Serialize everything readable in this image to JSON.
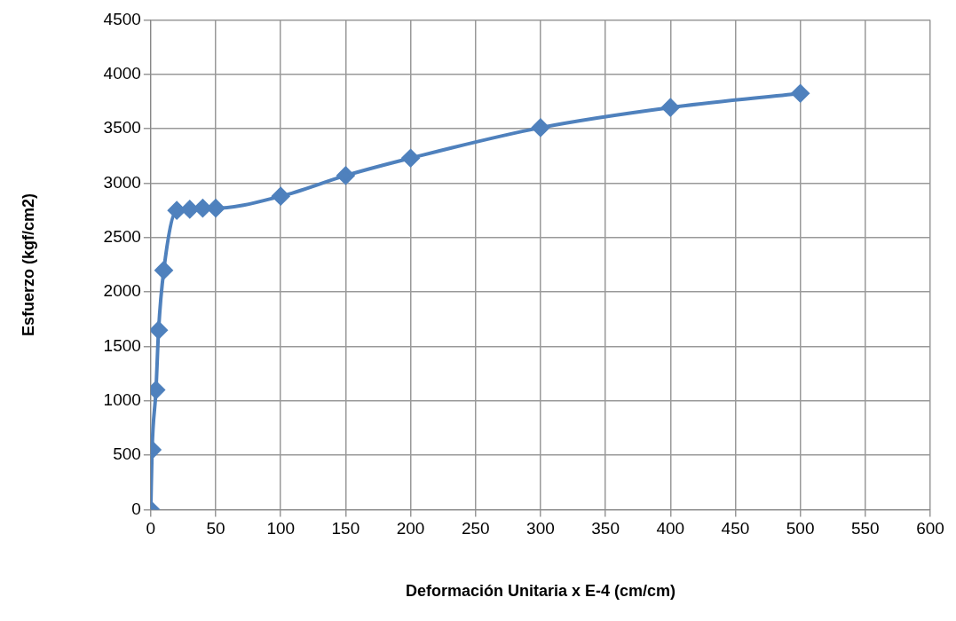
{
  "chart_data": {
    "type": "line",
    "xlabel": "Deformación Unitaria x E-4 (cm/cm)",
    "ylabel": "Esfuerzo (kgf/cm2)",
    "x": [
      0,
      1,
      4,
      6,
      10,
      20,
      30,
      40,
      50,
      100,
      150,
      200,
      300,
      400,
      500
    ],
    "series": [
      {
        "color": "#4f81bd",
        "values": [
          0,
          550,
          1100,
          1650,
          2200,
          2750,
          2760,
          2770,
          2770,
          2880,
          3070,
          3230,
          3510,
          3695,
          3825
        ]
      }
    ],
    "xlim": [
      0,
      600
    ],
    "xticks": [
      0,
      50,
      100,
      150,
      200,
      250,
      300,
      350,
      400,
      450,
      500,
      550,
      600
    ],
    "ylim": [
      0,
      4500
    ],
    "yticks": [
      0,
      500,
      1000,
      1500,
      2000,
      2500,
      3000,
      3500,
      4000,
      4500
    ],
    "grid": true,
    "legend": false,
    "marker": "diamond",
    "line_style": "solid"
  }
}
